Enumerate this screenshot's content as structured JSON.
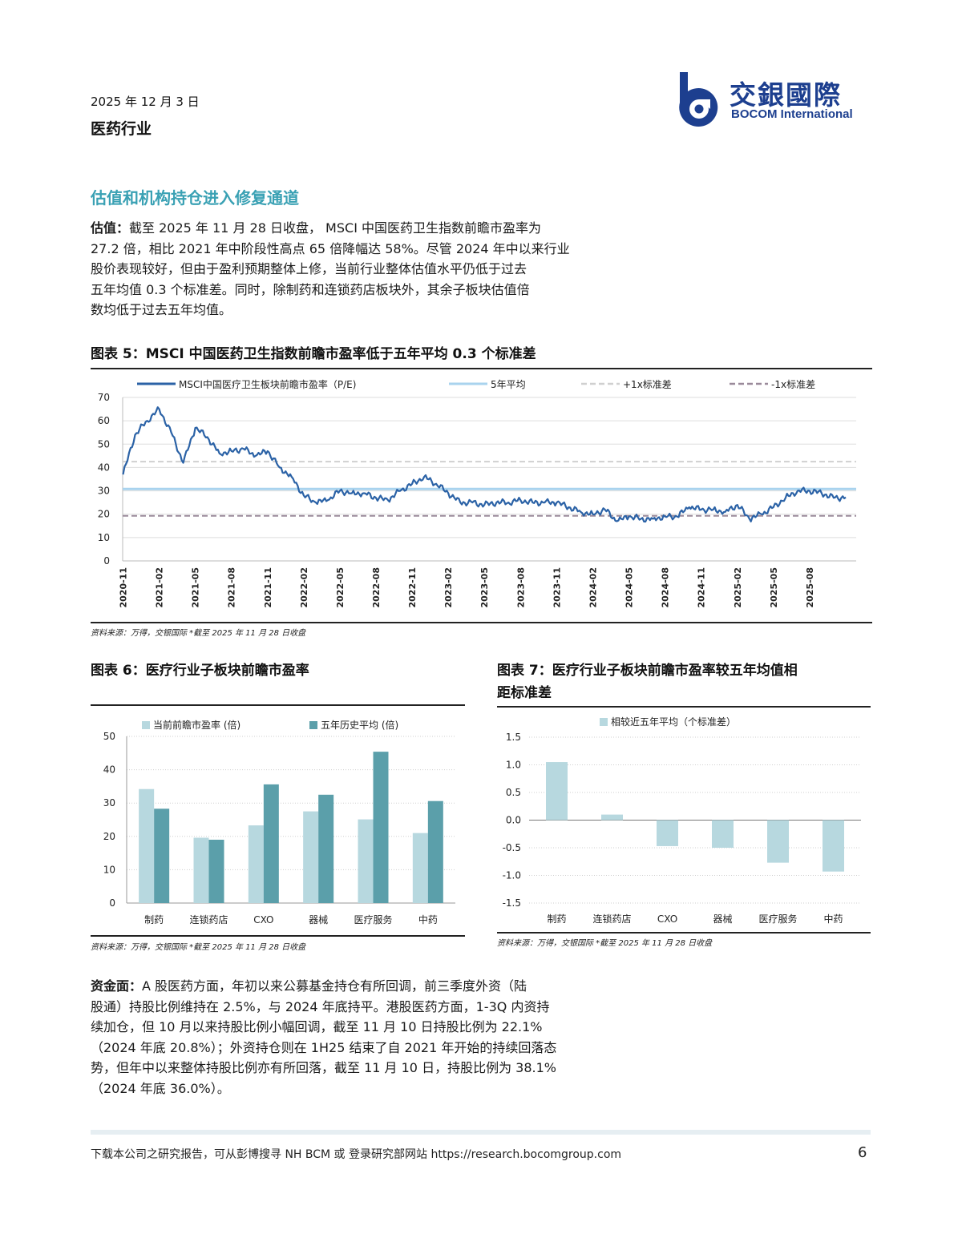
{
  "header": {
    "date": "2025 年 12 月 3 日",
    "sector": "医药行业",
    "logo_cn": "交銀國際",
    "logo_en": "BOCOM International"
  },
  "section_title": "估值和机构持仓进入修复通道",
  "para1": {
    "lead": "估值：",
    "line1": "截至 2025 年 11 月 28 日收盘， MSCI 中国医药卫生指数前瞻市盈率为",
    "line2": "27.2 倍，相比 2021 年中阶段性高点 65 倍降幅达 58%。尽管 2024 年中以来行业",
    "line3": "股价表现较好，但由于盈利预期整体上修，当前行业整体估值水平仍低于过去",
    "line4": "五年均值 0.3 个标准差。同时，除制药和连锁药店板块外，其余子板块估值倍",
    "line5": "数均低于过去五年均值。"
  },
  "fig5": {
    "title": "图表 5：MSCI 中国医药卫生指数前瞻市盈率低于五年平均 0.3 个标准差",
    "source": "资料来源：万得，交银国际 *截至 2025 年 11 月 28 日收盘",
    "chart_data": {
      "type": "line",
      "legend": [
        "MSCI中国医疗卫生板块前瞻市盈率（P/E)",
        "5年平均",
        "+1x标准差",
        "-1x标准差"
      ],
      "x_ticks": [
        "2020-11",
        "2021-02",
        "2021-05",
        "2021-08",
        "2021-11",
        "2022-02",
        "2022-05",
        "2022-08",
        "2022-11",
        "2023-02",
        "2023-05",
        "2023-08",
        "2023-11",
        "2024-02",
        "2024-05",
        "2024-08",
        "2024-11",
        "2025-02",
        "2025-05",
        "2025-08"
      ],
      "y_ticks": [
        "0",
        "10",
        "20",
        "30",
        "40",
        "50",
        "60",
        "70"
      ],
      "ylim": [
        0,
        70
      ],
      "mean": 30.8,
      "plus1sd": 42.5,
      "minus1sd": 19.3,
      "x": [
        "2020-11",
        "2020-12",
        "2021-01",
        "2021-02",
        "2021-03",
        "2021-04",
        "2021-05",
        "2021-06",
        "2021-07",
        "2021-08",
        "2021-09",
        "2021-10",
        "2021-11",
        "2021-12",
        "2022-01",
        "2022-02",
        "2022-03",
        "2022-04",
        "2022-05",
        "2022-06",
        "2022-07",
        "2022-08",
        "2022-09",
        "2022-10",
        "2022-11",
        "2022-12",
        "2023-01",
        "2023-02",
        "2023-03",
        "2023-04",
        "2023-05",
        "2023-06",
        "2023-07",
        "2023-08",
        "2023-09",
        "2023-10",
        "2023-11",
        "2023-12",
        "2024-01",
        "2024-02",
        "2024-03",
        "2024-04",
        "2024-05",
        "2024-06",
        "2024-07",
        "2024-08",
        "2024-09",
        "2024-10",
        "2024-11",
        "2024-12",
        "2025-01",
        "2025-02",
        "2025-03",
        "2025-04",
        "2025-05",
        "2025-06",
        "2025-07",
        "2025-08",
        "2025-09",
        "2025-10",
        "2025-11"
      ],
      "values": [
        37,
        54,
        60,
        65,
        55,
        42,
        57,
        53,
        46,
        47,
        48,
        45,
        47,
        40,
        36,
        28,
        25,
        26,
        30,
        29,
        29,
        27,
        26,
        30,
        33,
        36,
        33,
        29,
        25,
        25,
        24,
        25,
        25,
        26,
        25,
        25,
        25,
        23,
        21,
        20,
        22,
        17,
        19,
        18,
        18,
        19,
        19,
        23,
        22,
        22,
        21,
        24,
        18,
        20,
        23,
        27,
        30,
        30,
        29,
        27,
        27.2
      ]
    }
  },
  "fig6": {
    "title": "图表 6：医疗行业子板块前瞻市盈率",
    "source": "资料来源：万得，交银国际 *截至 2025 年 11 月 28 日收盘",
    "chart_data": {
      "type": "bar",
      "categories": [
        "制药",
        "连锁药店",
        "CXO",
        "器械",
        "医疗服务",
        "中药"
      ],
      "series": [
        {
          "name": "当前前瞻市盈率 (倍)",
          "values": [
            34.2,
            19.6,
            23.3,
            27.5,
            25.1,
            21.0
          ],
          "color": "#b7d8df"
        },
        {
          "name": "五年历史平均 (倍)",
          "values": [
            28.3,
            19.0,
            35.6,
            32.5,
            45.4,
            30.6
          ],
          "color": "#5b9faa"
        }
      ],
      "y_ticks": [
        "0",
        "10",
        "20",
        "30",
        "40",
        "50"
      ],
      "ylim": [
        0,
        50
      ]
    }
  },
  "fig7": {
    "title_line1": "图表 7：医疗行业子板块前瞻市盈率较五年均值相",
    "title_line2": "距标准差",
    "source": "资料来源：万得，交银国际 *截至 2025 年 11 月 28 日收盘",
    "chart_data": {
      "type": "bar",
      "categories": [
        "制药",
        "连锁药店",
        "CXO",
        "器械",
        "医疗服务",
        "中药"
      ],
      "series": [
        {
          "name": "相较近五年平均（个标准差）",
          "values": [
            1.05,
            0.1,
            -0.47,
            -0.5,
            -0.77,
            -0.93
          ],
          "color": "#b7d8df"
        }
      ],
      "y_ticks": [
        "1.5",
        "1.0",
        "0.5",
        "0.0",
        "-0.5",
        "-1.0",
        "-1.5"
      ],
      "ylim": [
        -1.5,
        1.5
      ]
    }
  },
  "para2": {
    "lead": "资金面：",
    "line1": "A 股医药方面，年初以来公募基金持仓有所回调，前三季度外资（陆",
    "line2": "股通）持股比例维持在 2.5%，与 2024 年底持平。港股医药方面，1-3Q 内资持",
    "line3": "续加仓，但 10 月以来持股比例小幅回调，截至 11 月 10 日持股比例为 22.1%",
    "line4": "（2024 年底 20.8%）；外资持仓则在 1H25 结束了自 2021 年开始的持续回落态",
    "line5": "势，但年中以来整体持股比例亦有所回落，截至 11 月 10 日，持股比例为 38.1%",
    "line6": "（2024 年底 36.0%）。"
  },
  "footer": {
    "text": "下载本公司之研究报告，可从彭博搜寻 NH BCM 或 登录研究部网站 https://research.bocomgroup.com",
    "page": "6"
  },
  "colors": {
    "accent": "#3aa1b4",
    "pe_line": "#2b62a6",
    "mean_line": "#a9d3ee",
    "plus_sd": "#d0d0d0",
    "minus_sd": "#9a8a9a",
    "logo_blue": "#1d3f8f"
  }
}
